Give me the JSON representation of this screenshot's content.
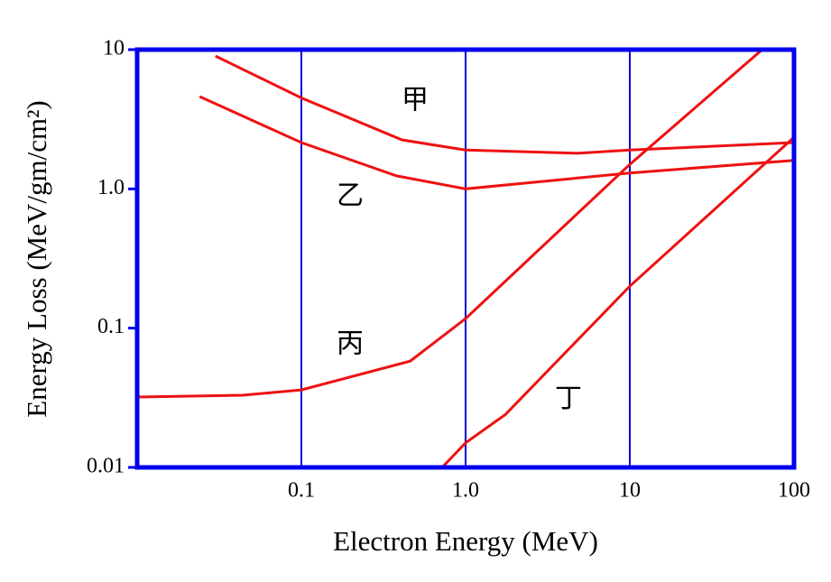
{
  "chart_data": {
    "type": "line",
    "x_label": "Electron Energy (MeV)",
    "y_label": "Energy Loss (MeV/gm/cm²)",
    "log_x": true,
    "log_y": true,
    "xlim": [
      0.01,
      100
    ],
    "ylim": [
      0.01,
      10
    ],
    "xticks": [
      0.1,
      {
        "value": 1,
        "label": "1.0"
      },
      10,
      100
    ],
    "yticks": [
      0.01,
      0.1,
      {
        "value": 1,
        "label": "1.0"
      },
      10
    ],
    "grid_x": true,
    "grid_color": "#0000cc",
    "frame_color": "#0000ee",
    "series": [
      {
        "name": "甲",
        "color": "#ee1111",
        "x": [
          0.03,
          0.1,
          0.41,
          1,
          4.8,
          10,
          100
        ],
        "values": [
          9.0,
          4.5,
          2.25,
          1.9,
          1.8,
          1.9,
          2.15
        ]
      },
      {
        "name": "乙",
        "color": "#ee1111",
        "x": [
          0.024,
          0.1,
          0.38,
          1,
          10,
          100
        ],
        "values": [
          4.6,
          2.15,
          1.24,
          1.0,
          1.3,
          1.6
        ]
      },
      {
        "name": "丙",
        "color": "#ee1111",
        "x": [
          0.01,
          0.044,
          0.1,
          0.46,
          1,
          10,
          64
        ],
        "values": [
          0.032,
          0.033,
          0.036,
          0.058,
          0.117,
          1.5,
          10
        ]
      },
      {
        "name": "丁",
        "color": "#ee1111",
        "x": [
          0.72,
          1,
          1.75,
          10,
          100
        ],
        "values": [
          0.01,
          0.015,
          0.024,
          0.2,
          2.35
        ]
      }
    ]
  }
}
